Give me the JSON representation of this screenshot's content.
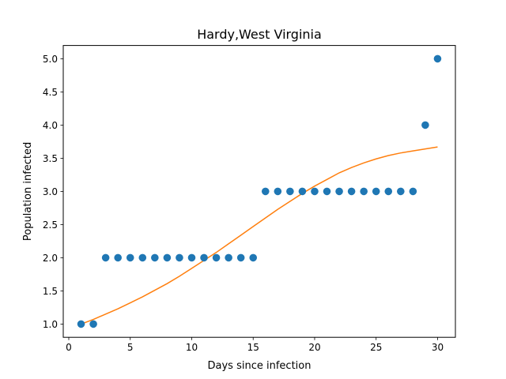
{
  "chart_data": {
    "type": "scatter",
    "title": "Hardy,West Virginia",
    "xlabel": "Days since infection",
    "ylabel": "Population infected",
    "xlim": [
      -0.45,
      31.45
    ],
    "ylim": [
      0.8,
      5.2
    ],
    "xticks": [
      0,
      5,
      10,
      15,
      20,
      25,
      30
    ],
    "xtick_labels": [
      "0",
      "5",
      "10",
      "15",
      "20",
      "25",
      "30"
    ],
    "yticks": [
      1.0,
      1.5,
      2.0,
      2.5,
      3.0,
      3.5,
      4.0,
      4.5,
      5.0
    ],
    "ytick_labels": [
      "1.0",
      "1.5",
      "2.0",
      "2.5",
      "3.0",
      "3.5",
      "4.0",
      "4.5",
      "5.0"
    ],
    "grid": false,
    "series": [
      {
        "kind": "scatter",
        "color": "#1f77b4",
        "x": [
          1,
          2,
          3,
          4,
          5,
          6,
          7,
          8,
          9,
          10,
          11,
          12,
          13,
          14,
          15,
          16,
          17,
          18,
          19,
          20,
          21,
          22,
          23,
          24,
          25,
          26,
          27,
          28,
          29,
          30
        ],
        "y": [
          1,
          1,
          2,
          2,
          2,
          2,
          2,
          2,
          2,
          2,
          2,
          2,
          2,
          2,
          2,
          3,
          3,
          3,
          3,
          3,
          3,
          3,
          3,
          3,
          3,
          3,
          3,
          3,
          4,
          5
        ]
      },
      {
        "kind": "line",
        "color": "#ff7f0e",
        "x": [
          1,
          2,
          3,
          4,
          5,
          6,
          7,
          8,
          9,
          10,
          11,
          12,
          13,
          14,
          15,
          16,
          17,
          18,
          19,
          20,
          21,
          22,
          23,
          24,
          25,
          26,
          27,
          28,
          29,
          30
        ],
        "y": [
          1.0,
          1.07,
          1.15,
          1.23,
          1.32,
          1.41,
          1.51,
          1.61,
          1.72,
          1.84,
          1.96,
          2.08,
          2.21,
          2.34,
          2.47,
          2.6,
          2.73,
          2.85,
          2.97,
          3.08,
          3.18,
          3.28,
          3.36,
          3.43,
          3.49,
          3.54,
          3.58,
          3.61,
          3.64,
          3.67
        ]
      }
    ]
  }
}
